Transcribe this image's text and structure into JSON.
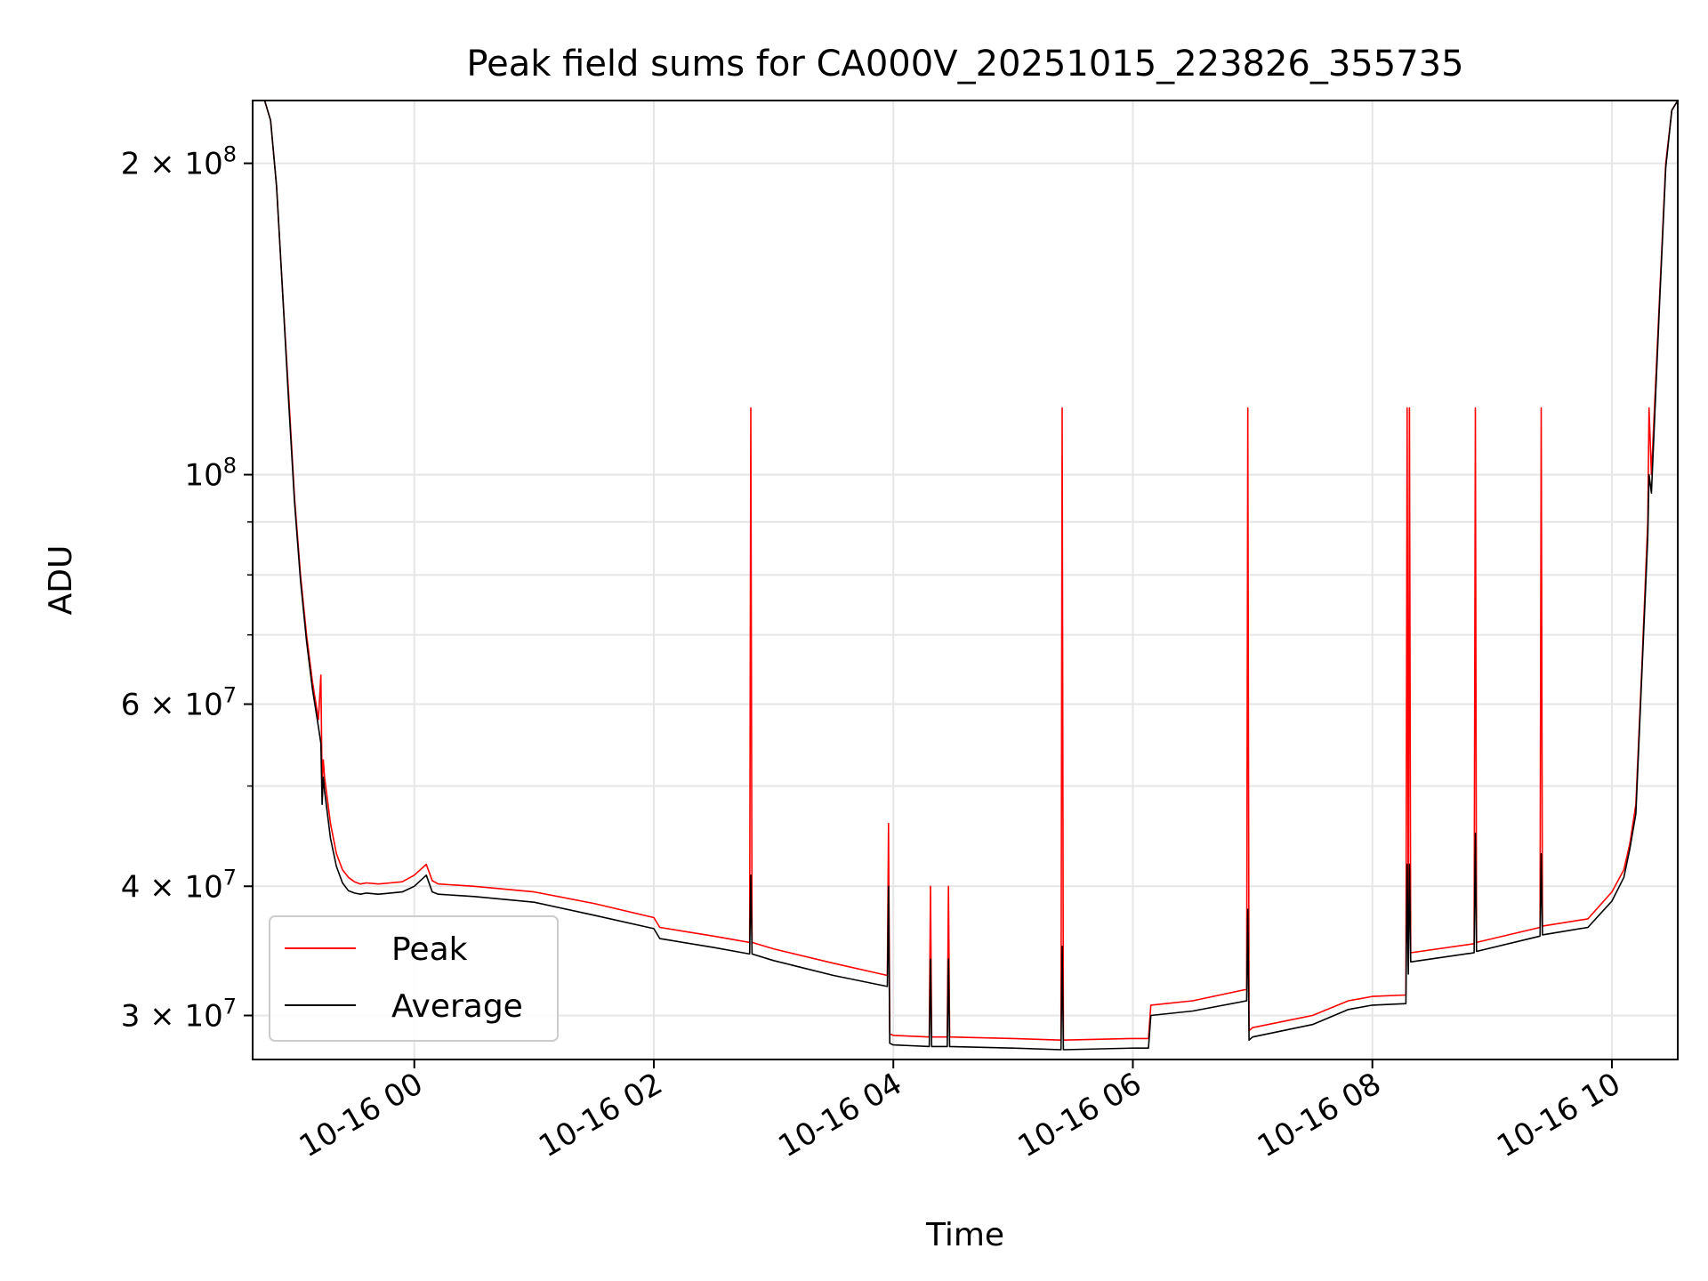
{
  "chart_data": {
    "type": "line",
    "title": "Peak field sums for CA000V_20251015_223826_355735",
    "xlabel": "Time",
    "ylabel": "ADU",
    "x_unit": "hours since 10-16 00:00",
    "xlim": [
      -1.35,
      10.55
    ],
    "ylim": [
      27200000,
      230000000
    ],
    "yscale": "log",
    "grid": true,
    "legend_position": "lower-left",
    "x_ticks": [
      {
        "value": 0,
        "label": "10-16 00"
      },
      {
        "value": 2,
        "label": "10-16 02"
      },
      {
        "value": 4,
        "label": "10-16 04"
      },
      {
        "value": 6,
        "label": "10-16 06"
      },
      {
        "value": 8,
        "label": "10-16 08"
      },
      {
        "value": 10,
        "label": "10-16 10"
      }
    ],
    "y_major_ticks": [
      {
        "value": 30000000,
        "base": "3 × 10",
        "exp": "7"
      },
      {
        "value": 40000000,
        "base": "4 × 10",
        "exp": "7"
      },
      {
        "value": 60000000,
        "base": "6 × 10",
        "exp": "7"
      },
      {
        "value": 100000000,
        "base": "10",
        "exp": "8"
      },
      {
        "value": 200000000,
        "base": "2 × 10",
        "exp": "8"
      }
    ],
    "y_minor_ticks": [
      50000000,
      70000000,
      80000000,
      90000000
    ],
    "series": [
      {
        "name": "Peak",
        "color": "#ff0000",
        "x": [
          -1.25,
          -1.2,
          -1.15,
          -1.1,
          -1.05,
          -1.0,
          -0.95,
          -0.9,
          -0.85,
          -0.8,
          -0.78,
          -0.77,
          -0.76,
          -0.75,
          -0.74,
          -0.7,
          -0.65,
          -0.6,
          -0.55,
          -0.5,
          -0.45,
          -0.4,
          -0.3,
          -0.2,
          -0.1,
          0.0,
          0.1,
          0.15,
          0.2,
          0.5,
          1.0,
          1.5,
          2.0,
          2.05,
          2.5,
          2.8,
          2.81,
          2.82,
          3.0,
          3.5,
          3.95,
          3.96,
          3.97,
          4.0,
          4.3,
          4.31,
          4.32,
          4.45,
          4.46,
          4.47,
          5.0,
          5.4,
          5.41,
          5.42,
          6.0,
          6.13,
          6.15,
          6.5,
          6.95,
          6.96,
          6.97,
          7.0,
          7.5,
          7.8,
          8.0,
          8.28,
          8.29,
          8.3,
          8.31,
          8.32,
          8.85,
          8.86,
          8.87,
          9.4,
          9.41,
          9.42,
          9.8,
          10.0,
          10.1,
          10.15,
          10.2,
          10.25,
          10.3,
          10.31,
          10.33,
          10.4,
          10.45,
          10.5,
          10.55
        ],
        "values": [
          230000000,
          220000000,
          190000000,
          150000000,
          120000000,
          95000000,
          80000000,
          70000000,
          63000000,
          58000000,
          64000000,
          50000000,
          53000000,
          51000000,
          50000000,
          46000000,
          43000000,
          41500000,
          40800000,
          40400000,
          40200000,
          40300000,
          40200000,
          40300000,
          40400000,
          41000000,
          42000000,
          40500000,
          40200000,
          40000000,
          39500000,
          38500000,
          37300000,
          36500000,
          35800000,
          35300000,
          116000000,
          35300000,
          34800000,
          33700000,
          32800000,
          46000000,
          28800000,
          28700000,
          28600000,
          40000000,
          28600000,
          28600000,
          40000000,
          28600000,
          28500000,
          28400000,
          116000000,
          28400000,
          28500000,
          28500000,
          30700000,
          31000000,
          31800000,
          116000000,
          29000000,
          29200000,
          30000000,
          31000000,
          31300000,
          31400000,
          116000000,
          33500000,
          116000000,
          34500000,
          35200000,
          116000000,
          35300000,
          36500000,
          116000000,
          36600000,
          37200000,
          39500000,
          41500000,
          44000000,
          48000000,
          65000000,
          90000000,
          116000000,
          100000000,
          150000000,
          200000000,
          225000000,
          230000000
        ]
      },
      {
        "name": "Average",
        "color": "#000000",
        "x": [
          -1.25,
          -1.2,
          -1.15,
          -1.1,
          -1.05,
          -1.0,
          -0.95,
          -0.9,
          -0.85,
          -0.8,
          -0.78,
          -0.77,
          -0.76,
          -0.75,
          -0.74,
          -0.7,
          -0.65,
          -0.6,
          -0.55,
          -0.5,
          -0.45,
          -0.4,
          -0.3,
          -0.2,
          -0.1,
          0.0,
          0.1,
          0.15,
          0.2,
          0.5,
          1.0,
          1.5,
          2.0,
          2.05,
          2.5,
          2.8,
          2.81,
          2.82,
          3.0,
          3.5,
          3.95,
          3.96,
          3.97,
          4.0,
          4.3,
          4.31,
          4.32,
          4.45,
          4.46,
          4.47,
          5.0,
          5.4,
          5.41,
          5.42,
          6.0,
          6.13,
          6.15,
          6.5,
          6.95,
          6.96,
          6.97,
          7.0,
          7.5,
          7.8,
          8.0,
          8.28,
          8.29,
          8.3,
          8.31,
          8.32,
          8.85,
          8.86,
          8.87,
          9.4,
          9.41,
          9.42,
          9.8,
          10.0,
          10.1,
          10.15,
          10.2,
          10.25,
          10.3,
          10.31,
          10.33,
          10.4,
          10.45,
          10.5,
          10.55
        ],
        "values": [
          230000000,
          220000000,
          190000000,
          150000000,
          118000000,
          94000000,
          79000000,
          69000000,
          62000000,
          57000000,
          55000000,
          48000000,
          51000000,
          49500000,
          48500000,
          44500000,
          41800000,
          40300000,
          39600000,
          39400000,
          39300000,
          39400000,
          39300000,
          39400000,
          39500000,
          40000000,
          41000000,
          39500000,
          39300000,
          39100000,
          38600000,
          37500000,
          36400000,
          35600000,
          34900000,
          34400000,
          41000000,
          34400000,
          33900000,
          32800000,
          32000000,
          40000000,
          28200000,
          28100000,
          28000000,
          34000000,
          28000000,
          28000000,
          34000000,
          28000000,
          27900000,
          27800000,
          35000000,
          27800000,
          27900000,
          27900000,
          30000000,
          30300000,
          31000000,
          38000000,
          28400000,
          28600000,
          29400000,
          30400000,
          30700000,
          30800000,
          42000000,
          32900000,
          42000000,
          33800000,
          34500000,
          45000000,
          34600000,
          35800000,
          43000000,
          35900000,
          36500000,
          38700000,
          40800000,
          43500000,
          47000000,
          64000000,
          87000000,
          100000000,
          96000000,
          148000000,
          198000000,
          225000000,
          230000000
        ]
      }
    ]
  }
}
